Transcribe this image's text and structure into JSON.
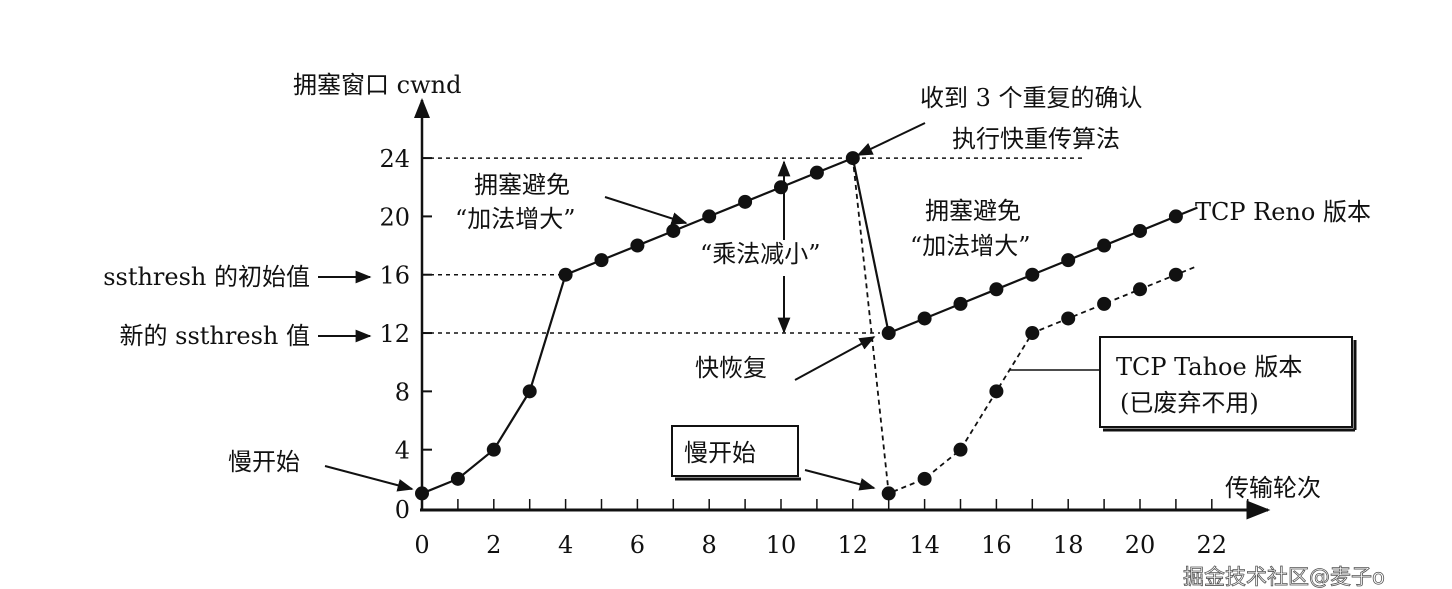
{
  "chart_data": {
    "type": "line",
    "ylabel": "拥塞窗口 cwnd",
    "xlabel": "传输轮次",
    "xlim": [
      0,
      22
    ],
    "ylim": [
      0,
      24
    ],
    "x_ticks": [
      0,
      2,
      4,
      6,
      8,
      10,
      12,
      14,
      16,
      18,
      20,
      22
    ],
    "y_ticks": [
      0,
      4,
      8,
      12,
      16,
      20,
      24
    ],
    "grid": false,
    "series": [
      {
        "name": "TCP Reno 版本",
        "style": "solid",
        "x": [
          0,
          1,
          2,
          3,
          4,
          5,
          6,
          7,
          8,
          9,
          10,
          11,
          12,
          13,
          14,
          15,
          16,
          17,
          18,
          19,
          20,
          21
        ],
        "y": [
          1,
          2,
          4,
          8,
          16,
          17,
          18,
          19,
          20,
          21,
          22,
          23,
          24,
          12,
          13,
          14,
          15,
          16,
          17,
          18,
          19,
          20
        ]
      },
      {
        "name": "TCP Tahoe 版本",
        "style": "dashed",
        "x": [
          12,
          13,
          14,
          15,
          16,
          17,
          18,
          19,
          20,
          21
        ],
        "y": [
          24,
          1,
          2,
          4,
          8,
          12,
          13,
          14,
          15,
          16
        ]
      }
    ],
    "reference_lines": [
      24,
      16,
      12
    ],
    "annotations": {
      "ssthresh_initial": "ssthresh 的初始值",
      "ssthresh_new": "新的 ssthresh 值",
      "slow_start_1": "慢开始",
      "slow_start_2": "慢开始",
      "ca1_line1": "拥塞避免",
      "ca1_line2": "“加法增大”",
      "md": "“乘法减小”",
      "dup_ack_line1": "收到 3 个重复的确认",
      "dup_ack_line2": "执行快重传算法",
      "ca2_line1": "拥塞避免",
      "ca2_line2": "“加法增大”",
      "reno": "TCP Reno 版本",
      "fast_recovery": "快恢复",
      "tahoe_line1": "TCP Tahoe 版本",
      "tahoe_line2": "(已废弃不用)"
    },
    "colors": {
      "ink": "#111111",
      "background": "#ffffff"
    }
  },
  "watermark": "掘金技术社区@麦子o"
}
